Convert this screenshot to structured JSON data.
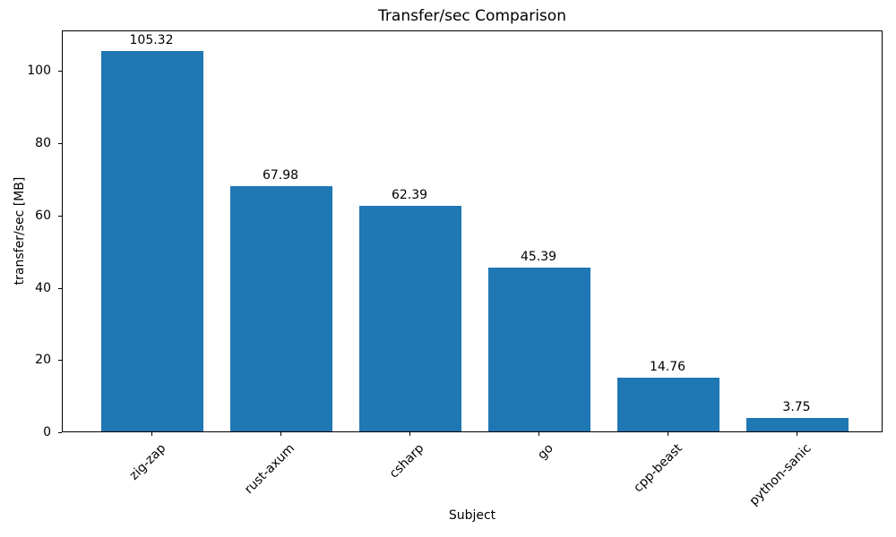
{
  "chart_data": {
    "type": "bar",
    "title": "Transfer/sec Comparison",
    "xlabel": "Subject",
    "ylabel": "transfer/sec [MB]",
    "categories": [
      "zig-zap",
      "rust-axum",
      "csharp",
      "go",
      "cpp-beast",
      "python-sanic"
    ],
    "values": [
      105.32,
      67.98,
      62.39,
      45.39,
      14.76,
      3.75
    ],
    "value_labels": [
      "105.32",
      "67.98",
      "62.39",
      "45.39",
      "14.76",
      "3.75"
    ],
    "series": [
      {
        "name": "transfer/sec",
        "values": [
          105.32,
          67.98,
          62.39,
          45.39,
          14.76,
          3.75
        ]
      }
    ],
    "ylim": [
      0,
      111
    ],
    "yticks": [
      0,
      20,
      40,
      60,
      80,
      100
    ],
    "grid": false,
    "legend": null,
    "x_tick_rotation_deg": 45,
    "colors": {
      "bar": "#1f77b4",
      "axis": "#000000",
      "text": "#000000",
      "background": "#ffffff"
    }
  }
}
